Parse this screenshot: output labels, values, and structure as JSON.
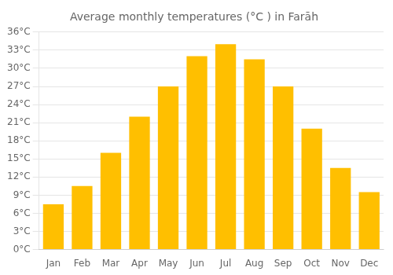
{
  "chart_data": {
    "type": "bar",
    "title": "Average monthly temperatures (°C ) in Farāh",
    "categories": [
      "Jan",
      "Feb",
      "Mar",
      "Apr",
      "May",
      "Jun",
      "Jul",
      "Aug",
      "Sep",
      "Oct",
      "Nov",
      "Dec"
    ],
    "values": [
      7.5,
      10.5,
      16.0,
      22.0,
      27.0,
      32.0,
      34.0,
      31.5,
      27.0,
      20.0,
      13.5,
      9.5
    ],
    "color": "#FFBF00",
    "ylim": [
      0,
      36
    ],
    "yticks": [
      {
        "value": 0,
        "label": "0°C"
      },
      {
        "value": 3,
        "label": "3°C"
      },
      {
        "value": 6,
        "label": "6°C"
      },
      {
        "value": 9,
        "label": "9°C"
      },
      {
        "value": 12,
        "label": "12°C"
      },
      {
        "value": 15,
        "label": "15°C"
      },
      {
        "value": 18,
        "label": "18°C"
      },
      {
        "value": 21,
        "label": "21°C"
      },
      {
        "value": 24,
        "label": "24°C"
      },
      {
        "value": 27,
        "label": "27°C"
      },
      {
        "value": 30,
        "label": "30°C"
      },
      {
        "value": 33,
        "label": "33°C"
      },
      {
        "value": 36,
        "label": "36°C"
      }
    ],
    "grid": true
  }
}
